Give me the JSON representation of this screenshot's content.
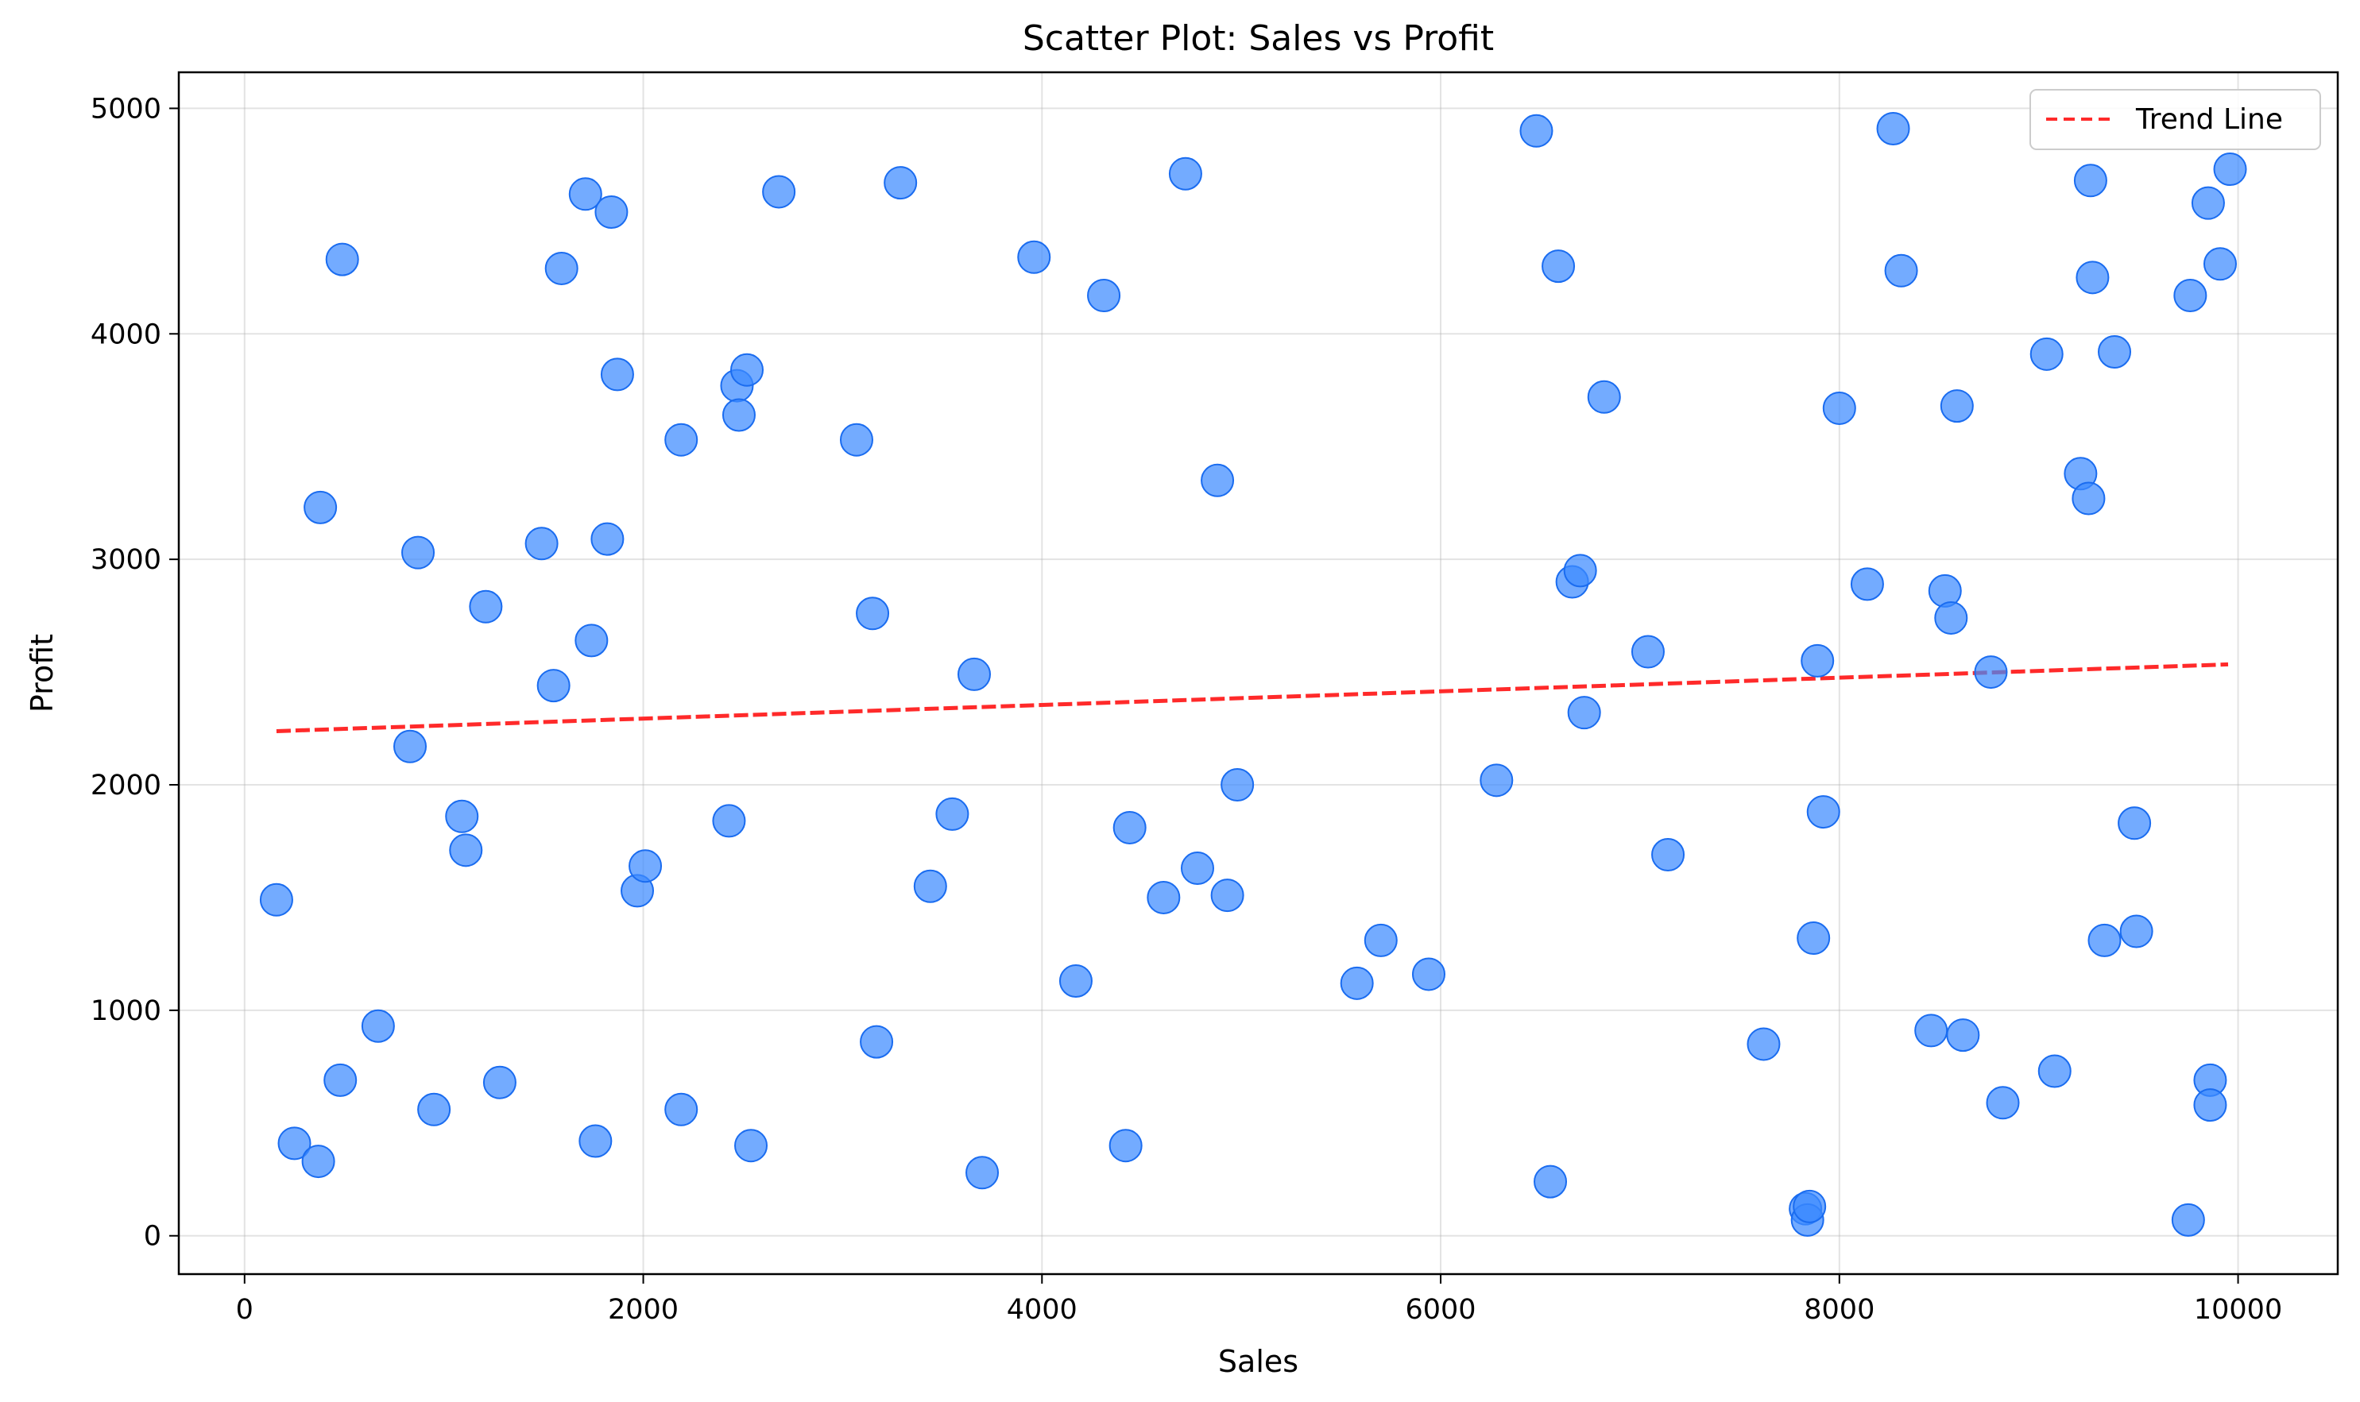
{
  "chart_data": {
    "type": "scatter",
    "title": "Scatter Plot: Sales vs Profit",
    "xlabel": "Sales",
    "ylabel": "Profit",
    "xlim": [
      -330,
      10500
    ],
    "ylim": [
      -170,
      5160
    ],
    "xticks": [
      0,
      2000,
      4000,
      6000,
      8000,
      10000
    ],
    "yticks": [
      0,
      1000,
      2000,
      3000,
      4000,
      5000
    ],
    "grid": true,
    "legend_position": "top-right",
    "colors": {
      "points": "#3d8bff",
      "trend": "#ff2a2a"
    },
    "series": [
      {
        "points": [
          [
            160,
            1490
          ],
          [
            250,
            410
          ],
          [
            370,
            330
          ],
          [
            380,
            3230
          ],
          [
            480,
            690
          ],
          [
            490,
            4330
          ],
          [
            670,
            930
          ],
          [
            830,
            2170
          ],
          [
            870,
            3030
          ],
          [
            950,
            560
          ],
          [
            1090,
            1860
          ],
          [
            1110,
            1710
          ],
          [
            1210,
            2790
          ],
          [
            1280,
            680
          ],
          [
            1490,
            3070
          ],
          [
            1550,
            2440
          ],
          [
            1590,
            4290
          ],
          [
            1710,
            4620
          ],
          [
            1740,
            2640
          ],
          [
            1760,
            420
          ],
          [
            1820,
            3090
          ],
          [
            1840,
            4540
          ],
          [
            1870,
            3820
          ],
          [
            1970,
            1530
          ],
          [
            2010,
            1640
          ],
          [
            2190,
            3530
          ],
          [
            2190,
            560
          ],
          [
            2430,
            1840
          ],
          [
            2470,
            3770
          ],
          [
            2480,
            3640
          ],
          [
            2520,
            3840
          ],
          [
            2540,
            400
          ],
          [
            2680,
            4630
          ],
          [
            3070,
            3530
          ],
          [
            3150,
            2760
          ],
          [
            3170,
            860
          ],
          [
            3290,
            4670
          ],
          [
            3440,
            1550
          ],
          [
            3550,
            1870
          ],
          [
            3660,
            2490
          ],
          [
            3700,
            280
          ],
          [
            3960,
            4340
          ],
          [
            4170,
            1130
          ],
          [
            4310,
            4170
          ],
          [
            4420,
            400
          ],
          [
            4440,
            1810
          ],
          [
            4610,
            1500
          ],
          [
            4720,
            4710
          ],
          [
            4780,
            1630
          ],
          [
            4880,
            3350
          ],
          [
            4930,
            1510
          ],
          [
            4980,
            2000
          ],
          [
            5580,
            1120
          ],
          [
            5700,
            1310
          ],
          [
            5940,
            1160
          ],
          [
            6280,
            2020
          ],
          [
            6480,
            4900
          ],
          [
            6550,
            240
          ],
          [
            6590,
            4300
          ],
          [
            6660,
            2900
          ],
          [
            6700,
            2950
          ],
          [
            6720,
            2320
          ],
          [
            6820,
            3720
          ],
          [
            7040,
            2590
          ],
          [
            7140,
            1690
          ],
          [
            7620,
            850
          ],
          [
            7830,
            120
          ],
          [
            7840,
            70
          ],
          [
            7850,
            130
          ],
          [
            7870,
            1320
          ],
          [
            7890,
            2550
          ],
          [
            7920,
            1880
          ],
          [
            8000,
            3670
          ],
          [
            8140,
            2890
          ],
          [
            8270,
            4910
          ],
          [
            8310,
            4280
          ],
          [
            8460,
            910
          ],
          [
            8530,
            2860
          ],
          [
            8560,
            2740
          ],
          [
            8590,
            3680
          ],
          [
            8620,
            890
          ],
          [
            8760,
            2500
          ],
          [
            8820,
            590
          ],
          [
            9040,
            3910
          ],
          [
            9080,
            730
          ],
          [
            9210,
            3380
          ],
          [
            9250,
            3270
          ],
          [
            9260,
            4680
          ],
          [
            9270,
            4250
          ],
          [
            9330,
            1310
          ],
          [
            9380,
            3920
          ],
          [
            9480,
            1830
          ],
          [
            9490,
            1350
          ],
          [
            9750,
            70
          ],
          [
            9760,
            4170
          ],
          [
            9850,
            4580
          ],
          [
            9860,
            690
          ],
          [
            9860,
            580
          ],
          [
            9910,
            4310
          ],
          [
            9960,
            4730
          ]
        ]
      },
      {
        "name": "Trend Line",
        "style": "dashed",
        "x": [
          160,
          9950
        ],
        "y": [
          2238,
          2534
        ]
      }
    ]
  }
}
